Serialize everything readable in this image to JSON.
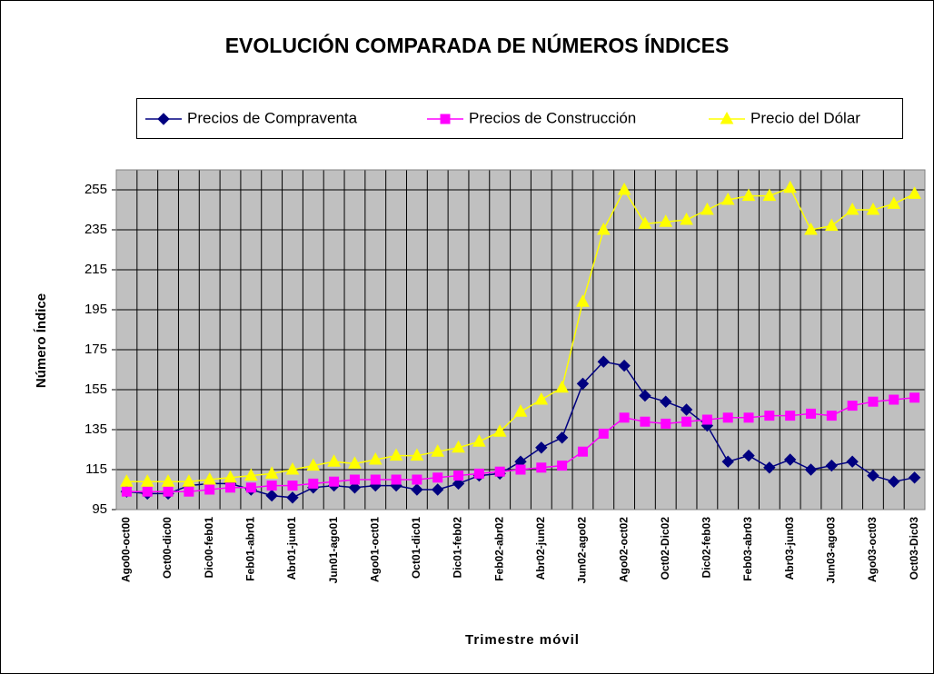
{
  "chart_data": {
    "type": "line",
    "title": "EVOLUCIÓN COMPARADA DE NÚMEROS ÍNDICES",
    "x_label": "Trimestre móvil",
    "y_label": "Número Índice",
    "categories": [
      "Ago00-oct00",
      null,
      "Oct00-dic00",
      null,
      "Dic00-feb01",
      null,
      "Feb01-abr01",
      null,
      "Abr01-jun01",
      null,
      "Jun01-ago01",
      null,
      "Ago01-oct01",
      null,
      "Oct01-dic01",
      null,
      "Dic01-feb02",
      null,
      "Feb02-abr02",
      null,
      "Abr02-jun02",
      null,
      "Jun02-ago02",
      null,
      "Ago02-oct02",
      null,
      "Oct02-Dic02",
      null,
      "Dic02-feb03",
      null,
      "Feb03-abr03",
      null,
      "Abr03-jun03",
      null,
      "Jun03-ago03",
      null,
      "Ago03-oct03",
      null,
      "Oct03-Dic03"
    ],
    "series": [
      {
        "name": "Precios de Compraventa",
        "color": "#000080",
        "marker": "diamond",
        "values": [
          104,
          103,
          103,
          107,
          108,
          108,
          105,
          102,
          101,
          106,
          107,
          106,
          107,
          107,
          105,
          105,
          108,
          112,
          113,
          119,
          126,
          131,
          158,
          169,
          167,
          152,
          149,
          145,
          137,
          119,
          122,
          116,
          120,
          115,
          117,
          119,
          112,
          109,
          111
        ]
      },
      {
        "name": "Precios de Construcción",
        "color": "#ff00ff",
        "marker": "square",
        "values": [
          104,
          104,
          104,
          104,
          105,
          106,
          106,
          107,
          107,
          108,
          109,
          110,
          110,
          110,
          110,
          111,
          112,
          113,
          114,
          115,
          116,
          117,
          124,
          133,
          141,
          139,
          138,
          139,
          140,
          141,
          141,
          142,
          142,
          143,
          142,
          147,
          149,
          150,
          151
        ]
      },
      {
        "name": "Precio del Dólar",
        "color": "#ffff00",
        "marker": "triangle",
        "values": [
          109,
          109,
          109,
          109,
          110,
          111,
          112,
          113,
          115,
          117,
          119,
          118,
          120,
          122,
          122,
          124,
          126,
          129,
          134,
          144,
          150,
          156,
          199,
          235,
          255,
          238,
          239,
          240,
          245,
          250,
          252,
          252,
          256,
          235,
          237,
          245,
          245,
          248,
          253
        ]
      }
    ],
    "ylim": [
      95,
      265
    ],
    "yticks": [
      95,
      115,
      135,
      155,
      175,
      195,
      215,
      235,
      255
    ],
    "grid": true,
    "legend": "top"
  }
}
